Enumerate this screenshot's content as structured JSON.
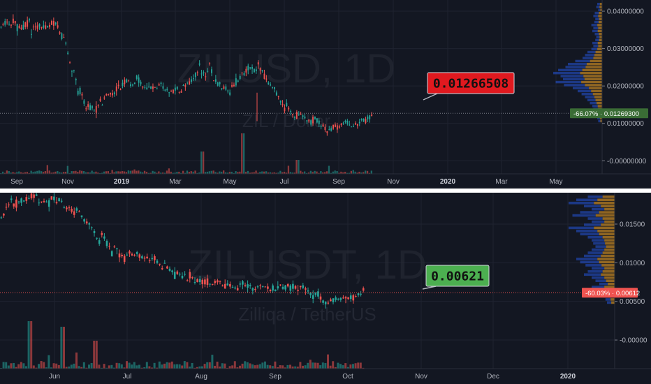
{
  "chart_data": [
    {
      "type": "candlestick",
      "symbol_watermark": "ZILUSD, 1D",
      "name_watermark": "ZIL / Dollar",
      "y_ticks": [
        "0.04000000",
        "0.03000000",
        "0.02000000",
        "0.01000000",
        "-0.00000000"
      ],
      "y_tick_values": [
        0.04,
        0.03,
        0.02,
        0.01,
        0.0
      ],
      "ylim": [
        -0.0035,
        0.0415
      ],
      "x_ticks": [
        {
          "label": "Sep",
          "bold": false
        },
        {
          "label": "Nov",
          "bold": false
        },
        {
          "label": "2019",
          "bold": true
        },
        {
          "label": "Mar",
          "bold": false
        },
        {
          "label": "May",
          "bold": false
        },
        {
          "label": "Jul",
          "bold": false
        },
        {
          "label": "Sep",
          "bold": false
        },
        {
          "label": "Nov",
          "bold": false
        },
        {
          "label": "2020",
          "bold": true
        },
        {
          "label": "Mar",
          "bold": false
        },
        {
          "label": "May",
          "bold": false
        }
      ],
      "price_path": [
        [
          0.036,
          0.0365
        ],
        [
          0.0366,
          0.0368
        ],
        [
          0.035,
          0.0369
        ],
        [
          0.0358,
          0.0362
        ],
        [
          0.0344,
          0.037
        ],
        [
          0.0352,
          0.0365
        ],
        [
          0.0361,
          0.0366
        ],
        [
          0.037,
          0.036
        ],
        [
          0.0355,
          0.0362
        ],
        [
          0.0326,
          0.0318
        ],
        [
          0.0262,
          0.0232
        ],
        [
          0.0191,
          0.0165
        ],
        [
          0.0148,
          0.0136
        ],
        [
          0.0127,
          0.0139
        ],
        [
          0.0146,
          0.0162
        ],
        [
          0.0175,
          0.0182
        ],
        [
          0.0191,
          0.0186
        ],
        [
          0.0206,
          0.0198
        ],
        [
          0.0202,
          0.0218
        ],
        [
          0.0224,
          0.0208
        ],
        [
          0.0196,
          0.0191
        ],
        [
          0.0198,
          0.0186
        ],
        [
          0.0208,
          0.0201
        ],
        [
          0.0189,
          0.0194
        ],
        [
          0.0183,
          0.0189
        ],
        [
          0.0182,
          0.0196
        ],
        [
          0.0201,
          0.0208
        ],
        [
          0.0214,
          0.0222
        ],
        [
          0.0236,
          0.0261
        ],
        [
          0.0266,
          0.0232
        ],
        [
          0.0218,
          0.0211
        ],
        [
          0.0201,
          0.0196
        ],
        [
          0.0185,
          0.0181
        ],
        [
          0.0203,
          0.0211
        ],
        [
          0.0233,
          0.0246
        ],
        [
          0.0239,
          0.0251
        ],
        [
          0.0258,
          0.0246
        ],
        [
          0.0232,
          0.0226
        ],
        [
          0.0201,
          0.0188
        ],
        [
          0.0166,
          0.0161
        ],
        [
          0.0153,
          0.0136
        ],
        [
          0.0122,
          0.0113
        ],
        [
          0.0121,
          0.0118
        ],
        [
          0.0105,
          0.0108
        ],
        [
          0.0116,
          0.0111
        ],
        [
          0.0098,
          0.0093
        ],
        [
          0.0081,
          0.0076
        ],
        [
          0.0089,
          0.0096
        ],
        [
          0.0101,
          0.0098
        ],
        [
          0.0093,
          0.0101
        ],
        [
          0.0096,
          0.0104
        ],
        [
          0.0105,
          0.0112
        ],
        [
          0.0116,
          0.0126
        ]
      ],
      "volume_profile": [
        0.1,
        0.12,
        0.08,
        0.15,
        0.18,
        0.14,
        0.16,
        0.22,
        0.18,
        0.2,
        0.15,
        0.12,
        0.14,
        0.2,
        0.18,
        0.22,
        0.3,
        0.35,
        0.4,
        0.55,
        0.7,
        0.75,
        0.9,
        1.0,
        0.85,
        0.8,
        0.95,
        0.78,
        0.6,
        0.5,
        0.42,
        0.35,
        0.3,
        0.25,
        0.2,
        0.18,
        0.15,
        0.12,
        0.1,
        0.08
      ],
      "last_price_callout": "0.01266508",
      "price_badge": "-66.07% · 0.01269300",
      "last_price": 0.012693,
      "colors": {
        "up": "#26a69a",
        "down": "#ef5350",
        "callout": "#e0191f",
        "badge": "#3a6c35"
      }
    },
    {
      "type": "candlestick",
      "symbol_watermark": "ZILUSDT, 1D",
      "name_watermark": "Zilliqa / TetherUS",
      "y_ticks": [
        "0.01500",
        "0.01000",
        "0.00500",
        "-0.00000"
      ],
      "y_tick_values": [
        0.015,
        0.01,
        0.005,
        0.0
      ],
      "ylim": [
        -0.0037,
        0.0187
      ],
      "x_ticks": [
        {
          "label": "Jun",
          "bold": false
        },
        {
          "label": "Jul",
          "bold": false
        },
        {
          "label": "Aug",
          "bold": false
        },
        {
          "label": "Sep",
          "bold": false
        },
        {
          "label": "Oct",
          "bold": false
        },
        {
          "label": "Nov",
          "bold": false
        },
        {
          "label": "Dec",
          "bold": false
        },
        {
          "label": "2020",
          "bold": true
        }
      ],
      "price_path": [
        [
          0.0158,
          0.0172
        ],
        [
          0.0176,
          0.0185
        ],
        [
          0.0185,
          0.0179
        ],
        [
          0.0182,
          0.0186
        ],
        [
          0.0186,
          0.0174
        ],
        [
          0.0172,
          0.0178
        ],
        [
          0.0172,
          0.0164
        ],
        [
          0.0155,
          0.0146
        ],
        [
          0.0138,
          0.0122
        ],
        [
          0.0118,
          0.011
        ],
        [
          0.0112,
          0.0104
        ],
        [
          0.0108,
          0.0112
        ],
        [
          0.011,
          0.0104
        ],
        [
          0.0098,
          0.0091
        ],
        [
          0.0089,
          0.0082
        ],
        [
          0.0084,
          0.0079
        ],
        [
          0.0077,
          0.0074
        ],
        [
          0.0075,
          0.0072
        ],
        [
          0.0072,
          0.0071
        ],
        [
          0.0071,
          0.0067
        ],
        [
          0.0068,
          0.0069
        ],
        [
          0.007,
          0.0067
        ],
        [
          0.0068,
          0.0065
        ],
        [
          0.0069,
          0.0071
        ],
        [
          0.0071,
          0.0068
        ],
        [
          0.0064,
          0.0054
        ],
        [
          0.0049,
          0.0047
        ],
        [
          0.005,
          0.0052
        ],
        [
          0.0053,
          0.0056
        ],
        [
          0.0057,
          0.0062
        ]
      ],
      "volume_profile": [
        0.35,
        0.5,
        0.6,
        0.4,
        0.3,
        0.45,
        0.55,
        0.35,
        0.3,
        0.4,
        0.6,
        0.5,
        0.45,
        0.35,
        0.3,
        0.28,
        0.25,
        0.3,
        0.35,
        0.4,
        0.5,
        0.45,
        0.38,
        0.3,
        0.35,
        0.4,
        0.3,
        0.25,
        0.2,
        0.3,
        0.25,
        0.2,
        0.15,
        0.12,
        0.1
      ],
      "last_price_callout": "0.00621",
      "price_badge": "-60.03% · 0.00612",
      "last_price": 0.00612,
      "colors": {
        "up": "#26a69a",
        "down": "#ef5350",
        "callout": "#4caf50",
        "badge": "#ef5350"
      }
    }
  ]
}
